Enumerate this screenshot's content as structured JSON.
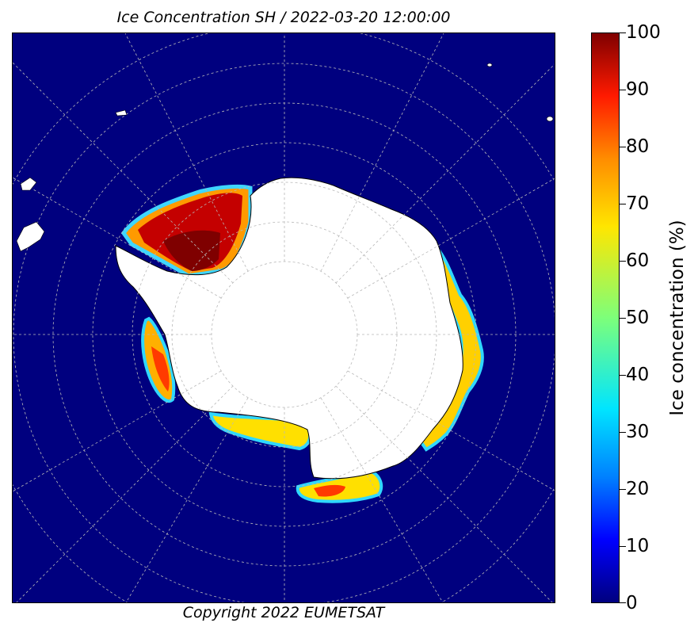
{
  "title": "Ice Concentration SH / 2022-03-20 12:00:00",
  "copyright": "Copyright 2022 EUMETSAT",
  "map": {
    "projection": "south-polar-stereographic",
    "ocean_color": "#00007f",
    "land_color": "#ffffff",
    "graticule_style": "dashed"
  },
  "colorbar": {
    "label": "Ice concentration (%)",
    "ticks": [
      "100",
      "90",
      "80",
      "70",
      "60",
      "50",
      "40",
      "30",
      "20",
      "10",
      "0"
    ],
    "colormap": "jet"
  }
}
